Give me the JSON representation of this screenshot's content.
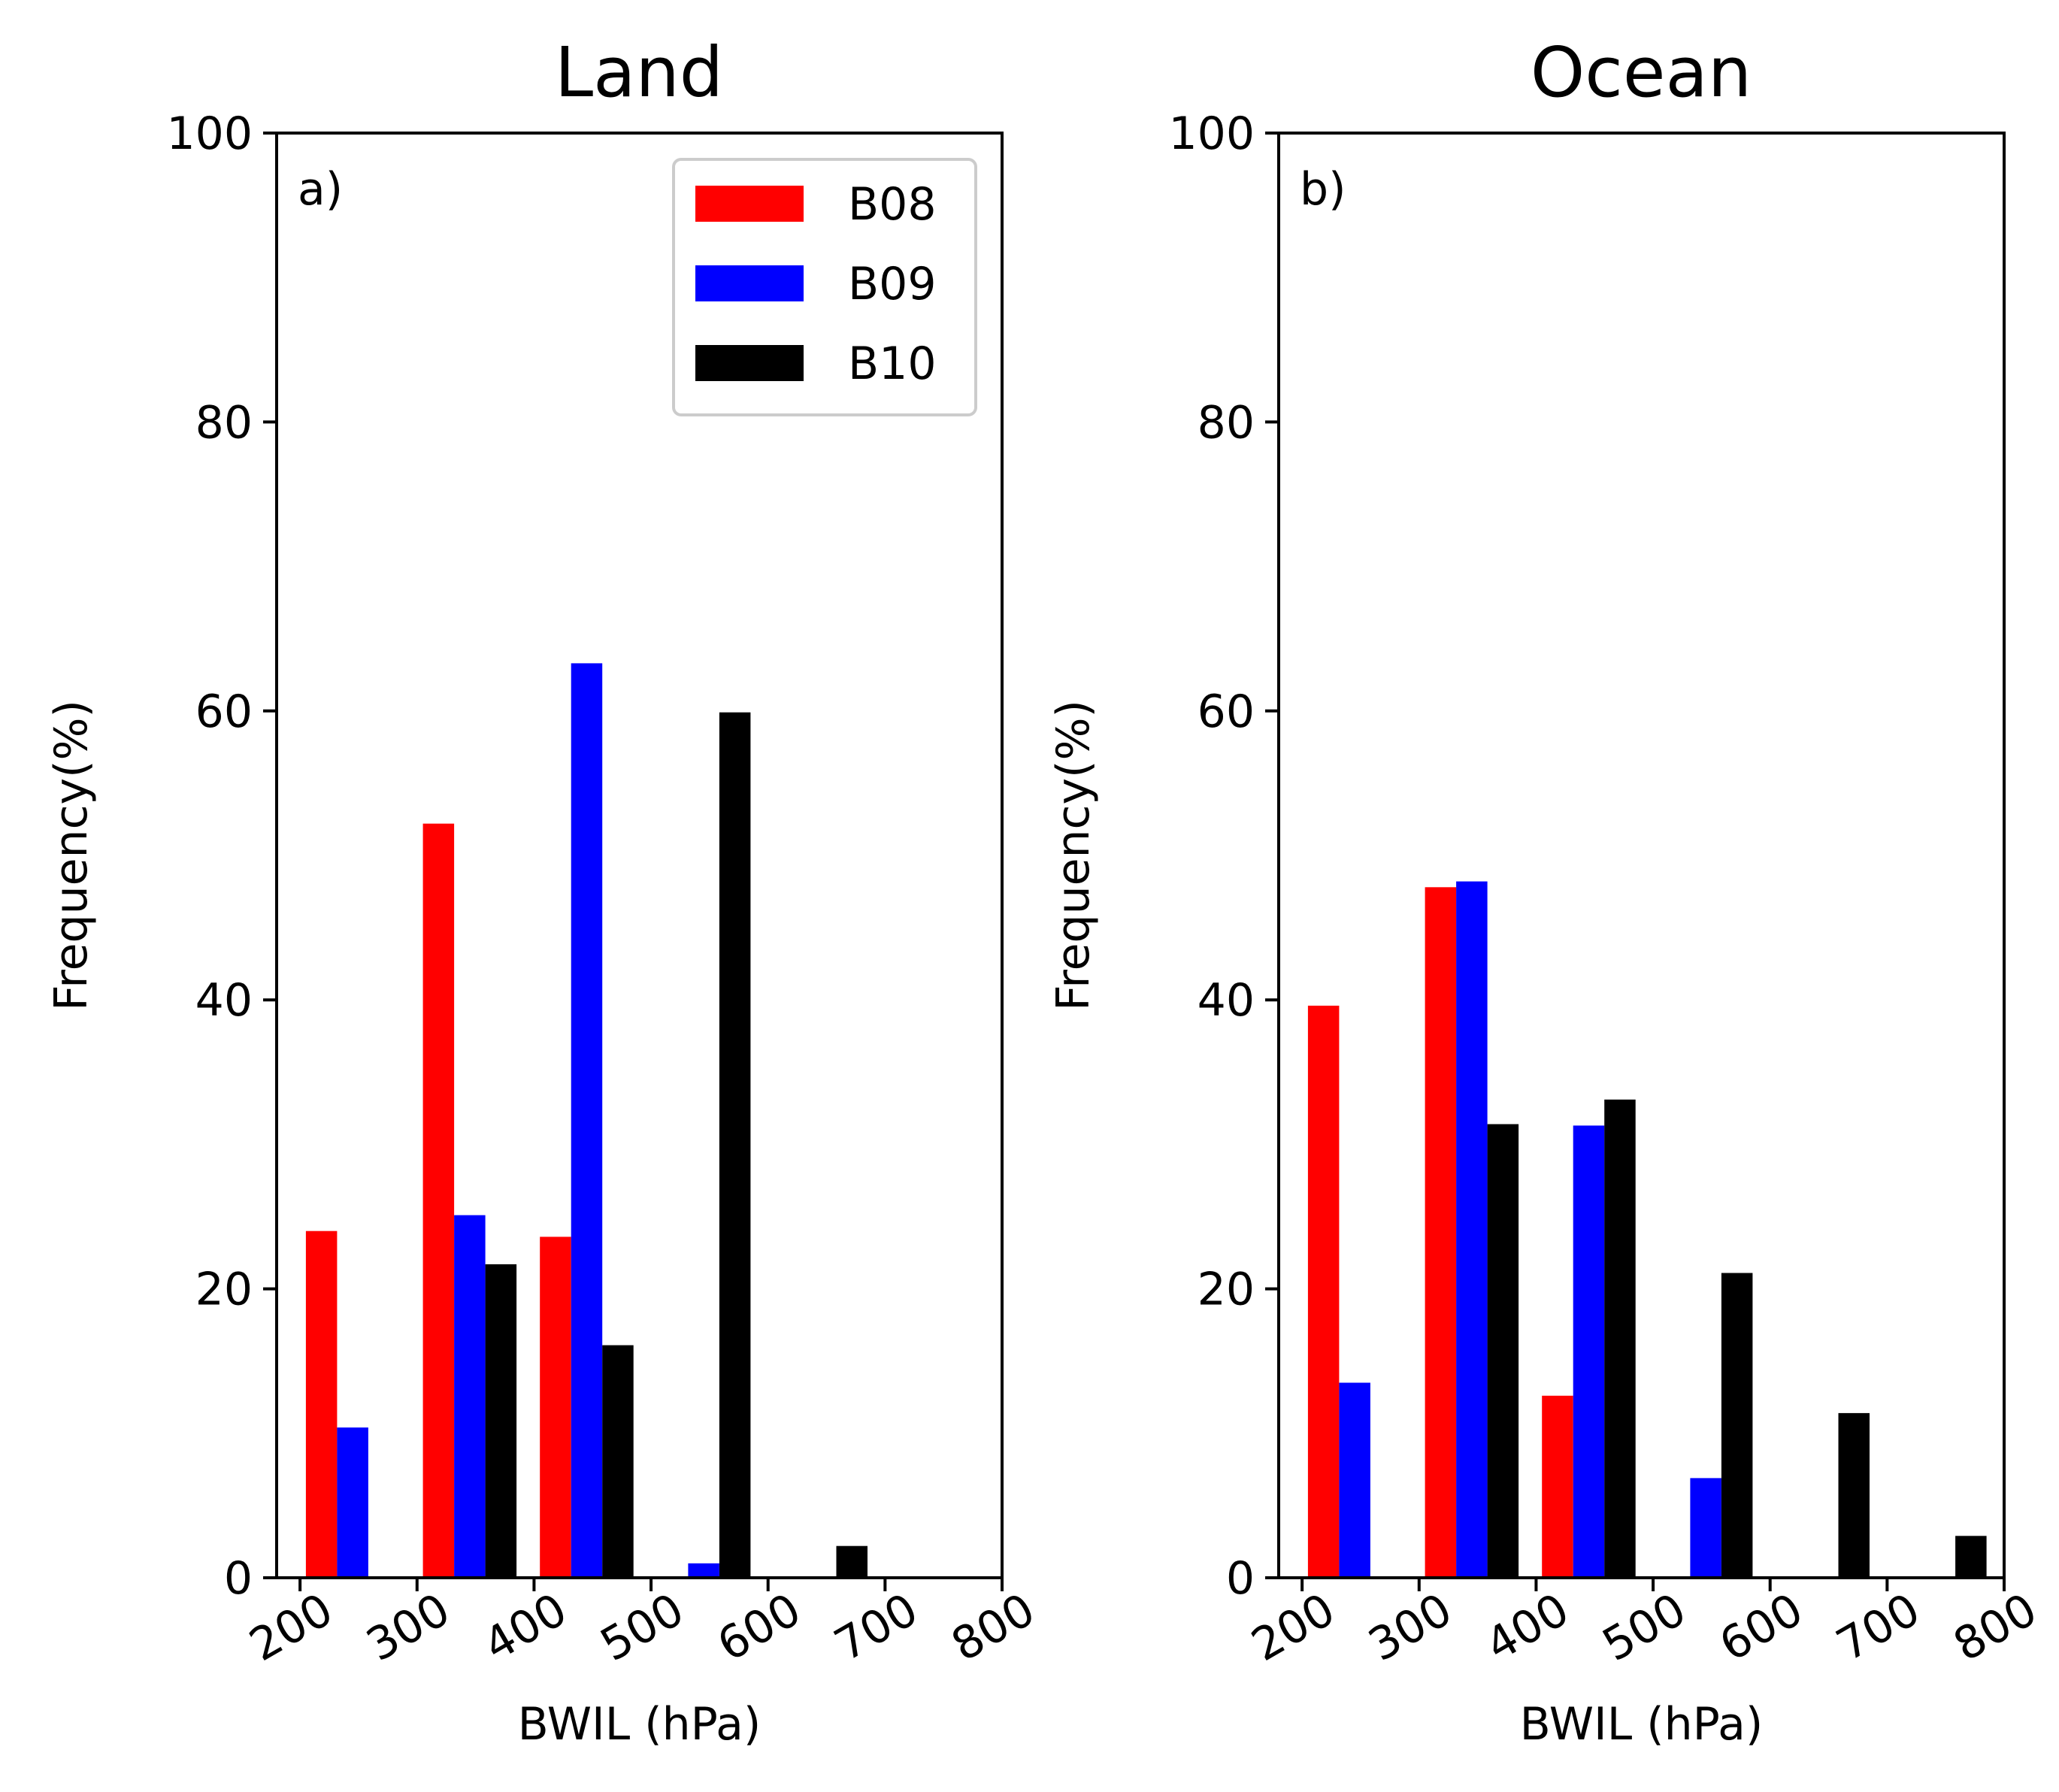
{
  "chart_data": [
    {
      "type": "bar",
      "panel_label": "a)",
      "title": "Land",
      "xlabel": "BWIL (hPa)",
      "ylabel": "Frequency(%)",
      "xlim": [
        180,
        800
      ],
      "ylim": [
        0,
        100
      ],
      "x_ticks": [
        "200",
        "300",
        "400",
        "500",
        "600",
        "700",
        "800"
      ],
      "y_ticks": [
        "0",
        "20",
        "40",
        "60",
        "80",
        "100"
      ],
      "bin_starts": [
        200,
        300,
        400,
        500,
        600,
        700
      ],
      "bin_width": 100,
      "grid": false,
      "legend_position": "top-right",
      "series": [
        {
          "name": "B08",
          "color": "#ff0000",
          "values": [
            24,
            52.2,
            23.6,
            0,
            0,
            0
          ]
        },
        {
          "name": "B09",
          "color": "#0000ff",
          "values": [
            10.4,
            25.1,
            63.3,
            1,
            0,
            0
          ]
        },
        {
          "name": "B10",
          "color": "#000000",
          "values": [
            0,
            21.7,
            16.1,
            59.9,
            2.2,
            0
          ]
        }
      ]
    },
    {
      "type": "bar",
      "panel_label": "b)",
      "title": "Ocean",
      "xlabel": "BWIL (hPa)",
      "ylabel": "Frequency(%)",
      "xlim": [
        180,
        800
      ],
      "ylim": [
        0,
        100
      ],
      "x_ticks": [
        "200",
        "300",
        "400",
        "500",
        "600",
        "700",
        "800"
      ],
      "y_ticks": [
        "0",
        "20",
        "40",
        "60",
        "80",
        "100"
      ],
      "bin_starts": [
        200,
        300,
        400,
        500,
        600,
        700
      ],
      "bin_width": 100,
      "grid": false,
      "legend_position": "none",
      "series": [
        {
          "name": "B08",
          "color": "#ff0000",
          "values": [
            39.6,
            47.8,
            12.6,
            0,
            0,
            0
          ]
        },
        {
          "name": "B09",
          "color": "#0000ff",
          "values": [
            13.5,
            48.2,
            31.3,
            6.9,
            0,
            0
          ]
        },
        {
          "name": "B10",
          "color": "#000000",
          "values": [
            0,
            31.4,
            33.1,
            21.1,
            11.4,
            2.9
          ]
        }
      ]
    }
  ]
}
